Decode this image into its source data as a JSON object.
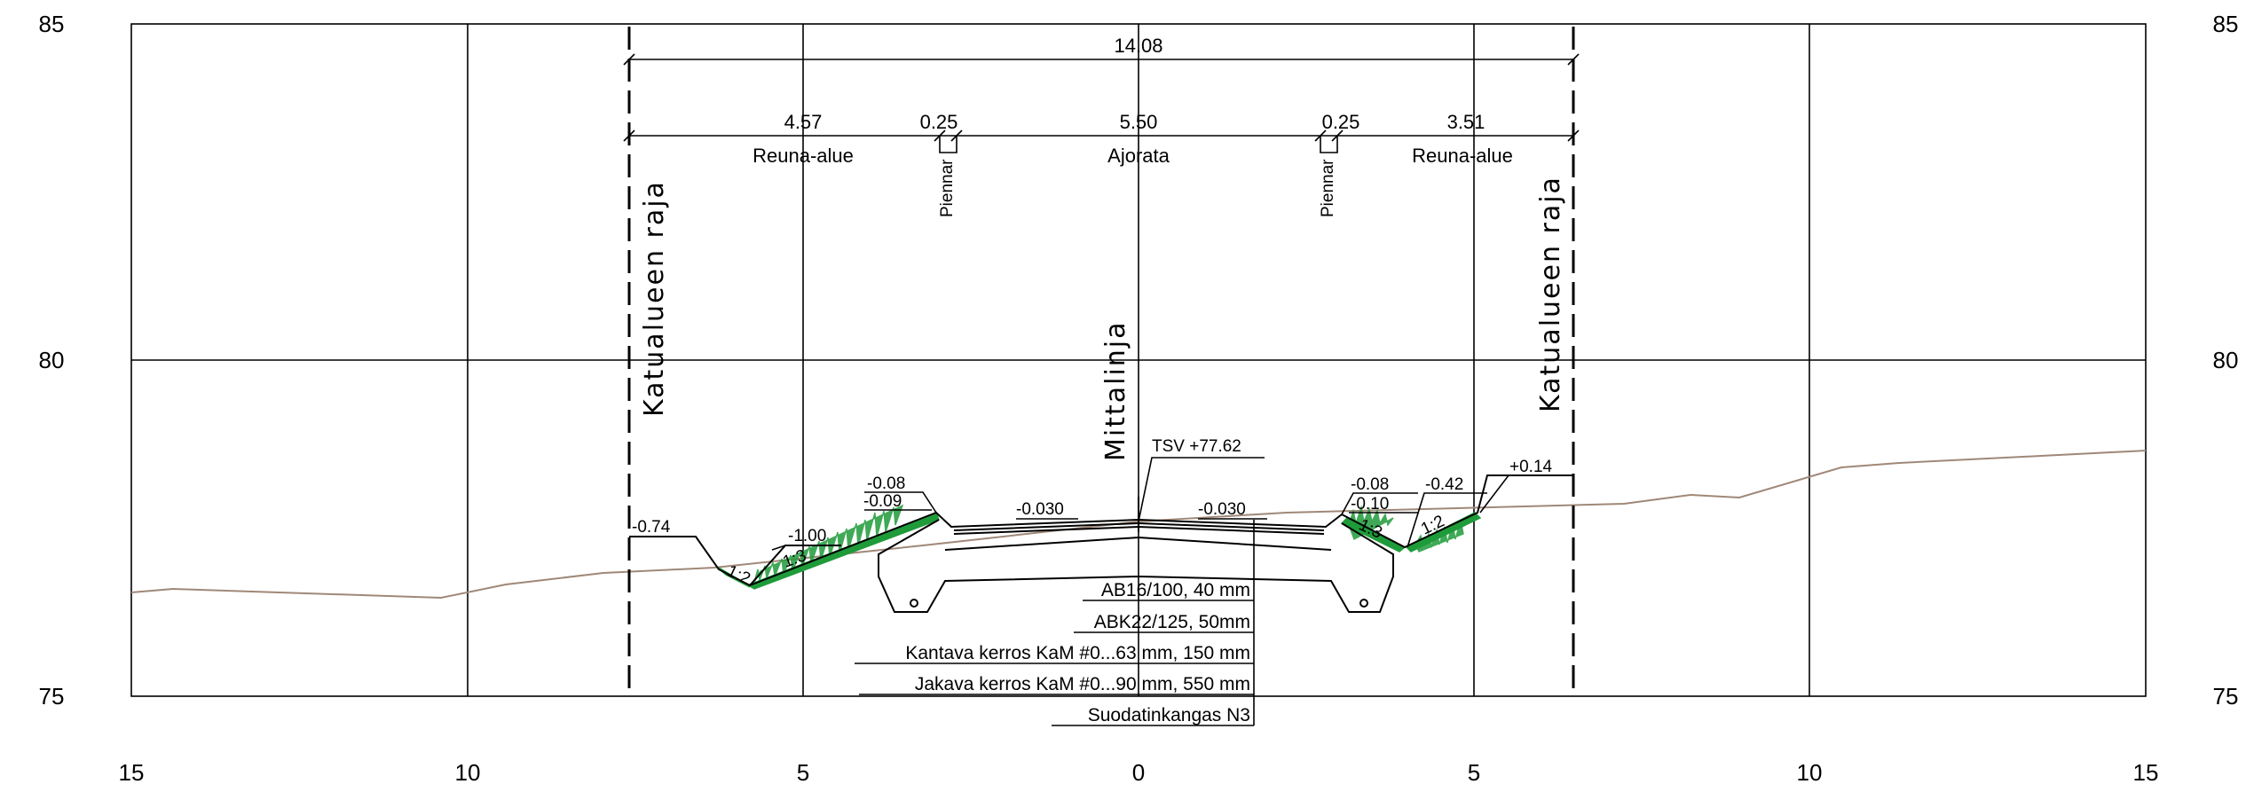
{
  "axes": {
    "x_ticks": [
      "15",
      "10",
      "5",
      "0",
      "5",
      "10",
      "15"
    ],
    "y_ticks_left": [
      "85",
      "80",
      "75"
    ],
    "y_ticks_right": [
      "85",
      "80",
      "75"
    ]
  },
  "dimensions": {
    "total": "14.08",
    "segments": [
      "4.57",
      "0.25",
      "5.50",
      "0.25",
      "3.51"
    ]
  },
  "regions": {
    "left_edge": "Reuna-alue",
    "carriageway": "Ajorata",
    "right_edge": "Reuna-alue",
    "shoulder_left": "Piennar",
    "shoulder_right": "Piennar"
  },
  "boundaries": {
    "left": "Katualueen raja",
    "right": "Katualueen raja",
    "centerline": "Mittalinja"
  },
  "elevations": {
    "tsv": "TSV +77.62",
    "left_outer": "-0.74",
    "left_ditch": "-1.00",
    "left_top1": "-0.08",
    "left_top2": "-0.09",
    "right_top1": "-0.08",
    "right_top2": "-0.10",
    "right_ditch": "-0.42",
    "right_outer": "+0.14",
    "crossfall_left": "-0.030",
    "crossfall_right": "-0.030"
  },
  "slopes": {
    "left_outer": "1:2",
    "left_inner": "1:3",
    "right_inner": "1:3",
    "right_outer": "1:2"
  },
  "layers": [
    "AB16/100, 40 mm",
    "ABK22/125, 50mm",
    "Kantava kerros KaM #0...63 mm, 150 mm",
    "Jakava kerros KaM #0...90 mm, 550 mm",
    "Suodatinkangas N3"
  ],
  "colors": {
    "ground": "#a08878",
    "vegetation": "#1f9b3a",
    "lines": "#000000"
  }
}
